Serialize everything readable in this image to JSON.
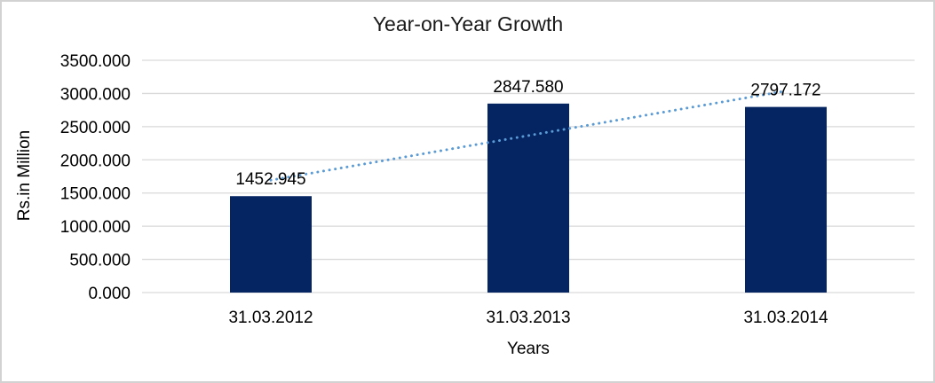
{
  "chart_data": {
    "type": "bar",
    "title": "Year-on-Year Growth",
    "xlabel": "Years",
    "ylabel": "Rs.in Million",
    "categories": [
      "31.03.2012",
      "31.03.2013",
      "31.03.2014"
    ],
    "values": [
      1452.945,
      2847.58,
      2797.172
    ],
    "data_labels": [
      "1452.945",
      "2847.580",
      "2797.172"
    ],
    "ylim": [
      0,
      3500
    ],
    "y_ticks": [
      0,
      500,
      1000,
      1500,
      2000,
      2500,
      3000,
      3500
    ],
    "y_tick_labels": [
      "0.000",
      "500.000",
      "1000.000",
      "1500.000",
      "2000.000",
      "2500.000",
      "3000.000",
      "3500.000"
    ],
    "grid": true,
    "legend": "none",
    "trendline": {
      "type": "linear",
      "style": "dotted",
      "color": "#5b9bd5"
    },
    "colors": {
      "bar": "#052562",
      "gridline": "#d9d9d9",
      "title_text": "#1a1a1a",
      "label_text": "#000000",
      "frame_border": "#d2d2d2"
    }
  }
}
